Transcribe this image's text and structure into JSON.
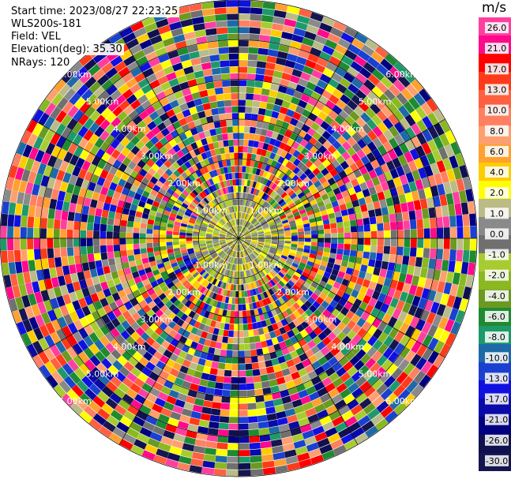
{
  "header": {
    "start_time": "Start time: 2023/08/27 22:23:25",
    "instrument": "WLS200s-181",
    "field": "Field: VEL",
    "elevation": "Elevation(deg): 35.30",
    "nrays": "NRays: 120"
  },
  "chart_data": {
    "type": "heatmap",
    "subtype": "ppi",
    "nrays": 120,
    "range_rings": [
      {
        "label": "1.00km",
        "rel": 0.167
      },
      {
        "label": "2.00km",
        "rel": 0.333
      },
      {
        "label": "3.00km",
        "rel": 0.5
      },
      {
        "label": "4.00km",
        "rel": 0.667
      },
      {
        "label": "5.00km",
        "rel": 0.833
      },
      {
        "label": "6.00km",
        "rel": 1.0
      }
    ],
    "colorbar": {
      "unit": "m/s",
      "min": -30,
      "max": 30,
      "ticks": [
        "26.0",
        "21.0",
        "17.0",
        "13.0",
        "10.0",
        "8.0",
        "6.0",
        "4.0",
        "2.0",
        "1.0",
        "0.0",
        "-1.0",
        "-2.0",
        "-4.0",
        "-6.0",
        "-8.0",
        "-10.0",
        "-13.0",
        "-17.0",
        "-21.0",
        "-26.0",
        "-30.0"
      ],
      "colors": [
        "#ff3fa0",
        "#ff0a8a",
        "#ff0000",
        "#ff3a1a",
        "#ff6040",
        "#ff8060",
        "#ff9f70",
        "#ffa030",
        "#ffcc00",
        "#ffff00",
        "#bbbb88",
        "#8a8a8a",
        "#707070",
        "#a8cc30",
        "#8ab820",
        "#6a9a20",
        "#208a30",
        "#1e9a6a",
        "#1e6aa8",
        "#1a40d0",
        "#1010e0",
        "#0a0aa8",
        "#000080",
        "#101050",
        "#151550"
      ]
    }
  }
}
